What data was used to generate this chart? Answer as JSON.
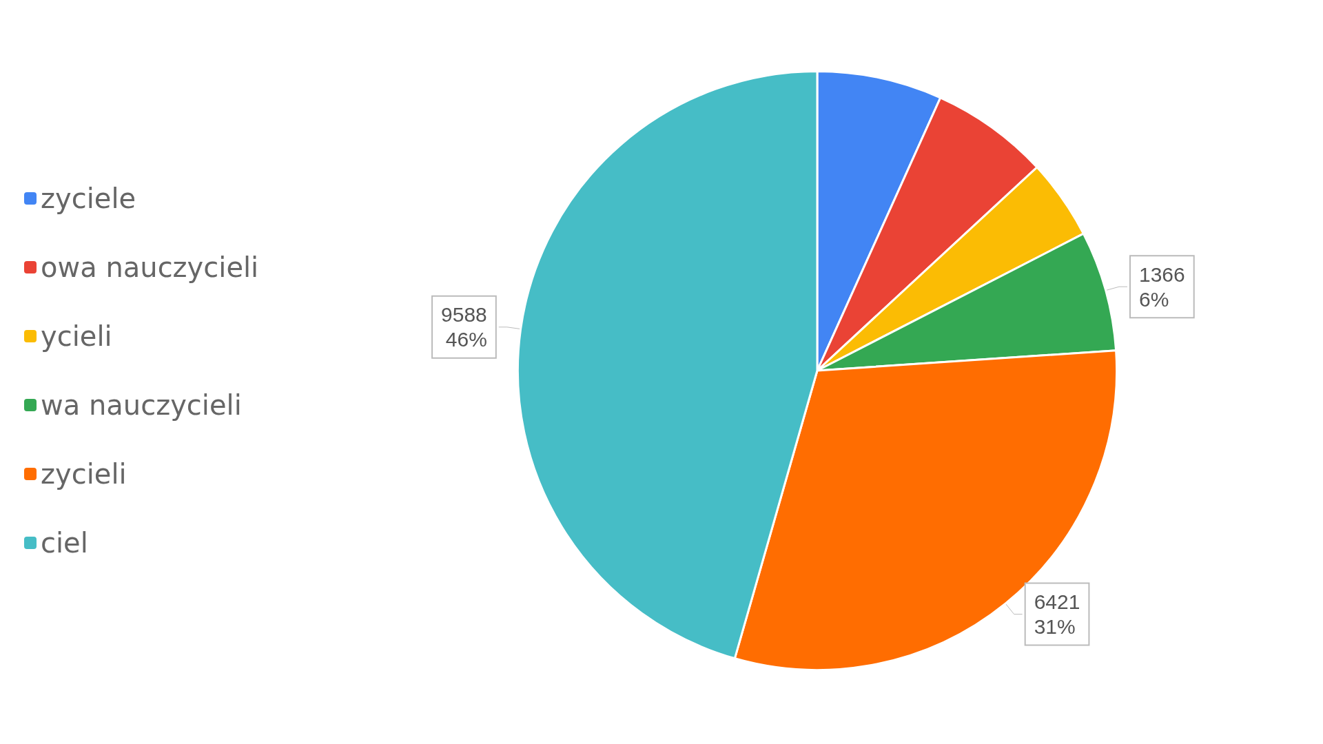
{
  "chart_data": {
    "type": "pie",
    "categories": [
      "zyciele",
      "owa nauczycieli",
      "ycieli",
      "wa nauczycieli",
      "zycieli",
      "ciel"
    ],
    "values": [
      1420,
      1340,
      910,
      1366,
      6421,
      9588
    ],
    "colors": [
      "#4285f4",
      "#ea4335",
      "#fbbc04",
      "#34a853",
      "#ff6d01",
      "#46bdc6"
    ],
    "value_labels": [
      null,
      null,
      null,
      "1366\n6%",
      "6421\n31%",
      "9588\n46%"
    ],
    "legend": "left"
  }
}
